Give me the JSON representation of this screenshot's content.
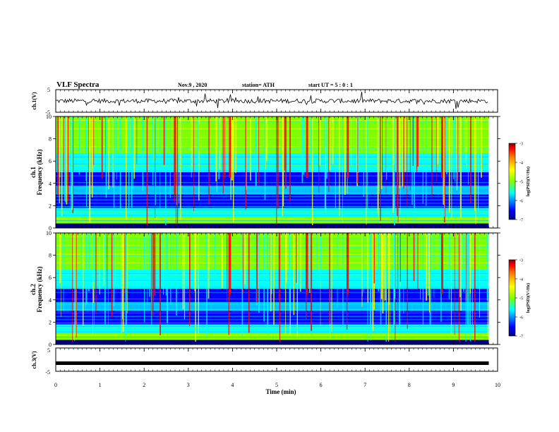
{
  "header": {
    "title": "VLF Spectra",
    "date": "Nov.9 , 2020",
    "station": "station= ATH",
    "start": "start UT = 5 : 0 : 1"
  },
  "chart_data": [
    {
      "type": "line",
      "name": "ch1-waveform",
      "ylabel": "ch.1(V)",
      "ylim": [
        -5,
        5
      ],
      "y_ticks": [
        "5",
        "-5"
      ],
      "x_range_min": [
        0,
        9.8
      ],
      "baseline_v": 0,
      "noise_band_v": [
        -1,
        1
      ]
    },
    {
      "type": "heatmap",
      "name": "ch1-spectrogram",
      "ylabel_line1": "ch.1",
      "ylabel_line2": "Frequency (kHz)",
      "ylim": [
        0,
        10
      ],
      "y_ticks": [
        "0",
        "2",
        "4",
        "6",
        "8",
        "10"
      ],
      "colorbar": {
        "label": "log(PSD)(V²/Hz)",
        "range": [
          -7,
          -3
        ],
        "ticks": [
          "-3",
          "-4",
          "-5",
          "-6",
          "-7"
        ]
      },
      "colors": [
        "#00007f",
        "#0000ff",
        "#00bfff",
        "#00ffff",
        "#7fff00",
        "#ffff00",
        "#ff7f00",
        "#ff0000",
        "#7f0000"
      ]
    },
    {
      "type": "heatmap",
      "name": "ch2-spectrogram",
      "ylabel_line1": "ch.2",
      "ylabel_line2": "Frequency (kHz)",
      "ylim": [
        0,
        10
      ],
      "y_ticks": [
        "0",
        "2",
        "4",
        "6",
        "8",
        "10"
      ],
      "colorbar": {
        "label": "log(PSD)(V²/Hz)",
        "range": [
          -7,
          -3
        ],
        "ticks": [
          "-3",
          "-4",
          "-5",
          "-6",
          "-7"
        ]
      }
    },
    {
      "type": "line",
      "name": "ch3-waveform",
      "ylabel": "ch.3(V)",
      "ylim": [
        -5,
        5
      ],
      "y_ticks": [
        "5",
        "-5"
      ],
      "x_range_min": [
        0,
        9.8
      ],
      "level_v": -1.5
    }
  ],
  "x_axis": {
    "label": "Time (min)",
    "range": [
      0,
      10
    ],
    "ticks": [
      "0",
      "1",
      "2",
      "3",
      "4",
      "5",
      "6",
      "7",
      "8",
      "9",
      "10"
    ]
  }
}
